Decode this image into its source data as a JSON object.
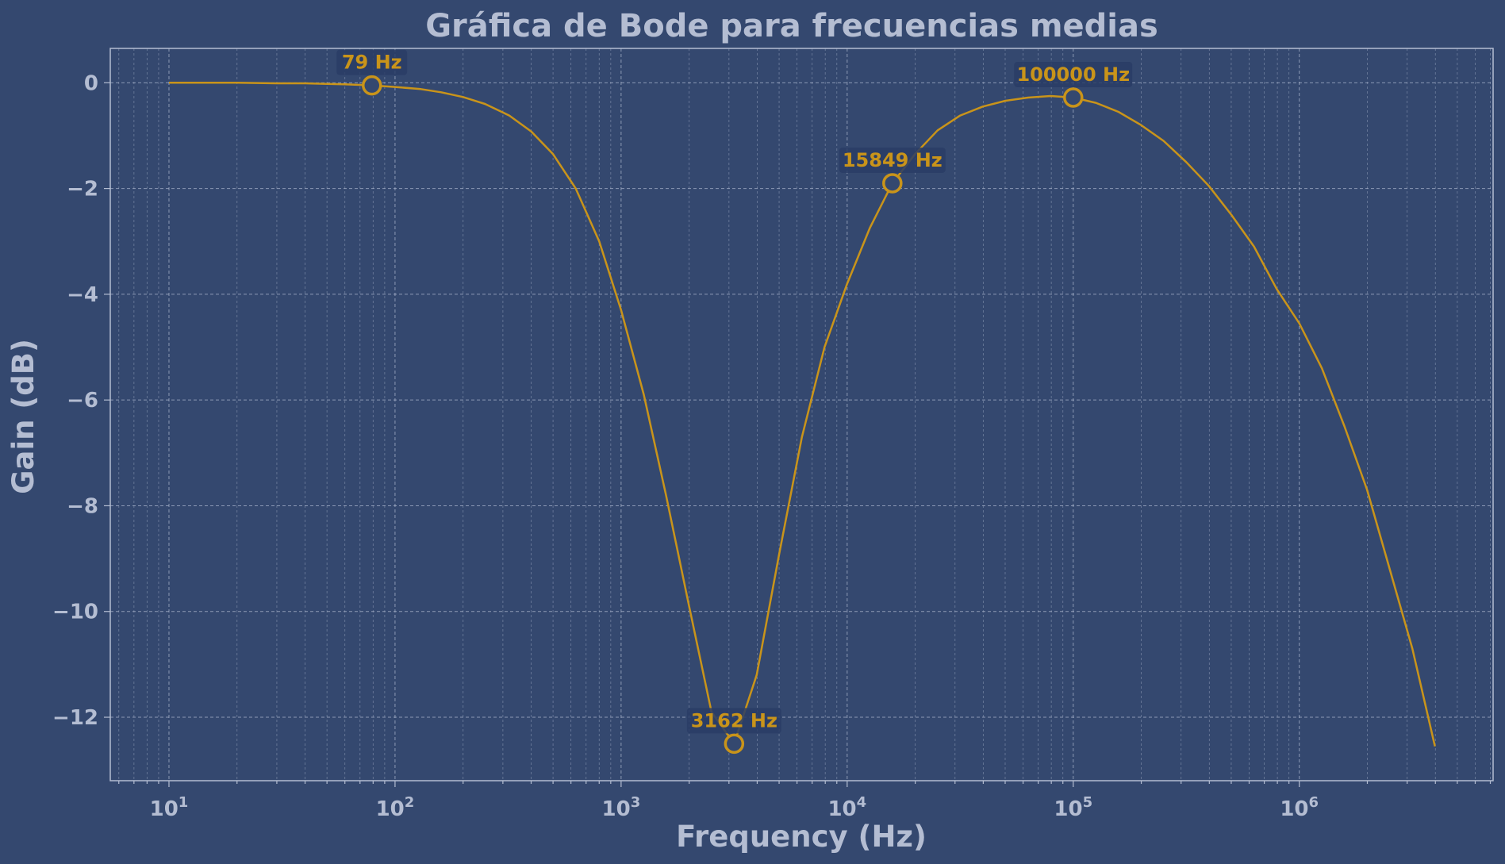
{
  "chart_data": {
    "type": "line",
    "title": "Gráfica de Bode para frecuencias medias",
    "xlabel": "Frequency (Hz)",
    "ylabel": "Gain (dB)",
    "x_scale": "log",
    "xlim": [
      5.5,
      7200000
    ],
    "ylim": [
      -13.2,
      0.65
    ],
    "grid": true,
    "x_ticks": [
      {
        "value": 10,
        "base": "10",
        "exp": "1"
      },
      {
        "value": 100,
        "base": "10",
        "exp": "2"
      },
      {
        "value": 1000,
        "base": "10",
        "exp": "3"
      },
      {
        "value": 10000,
        "base": "10",
        "exp": "4"
      },
      {
        "value": 100000,
        "base": "10",
        "exp": "5"
      },
      {
        "value": 1000000,
        "base": "10",
        "exp": "6"
      }
    ],
    "y_ticks": [
      {
        "value": 0,
        "label": "0"
      },
      {
        "value": -2,
        "label": "−2"
      },
      {
        "value": -4,
        "label": "−4"
      },
      {
        "value": -6,
        "label": "−6"
      },
      {
        "value": -8,
        "label": "−8"
      },
      {
        "value": -10,
        "label": "−10"
      },
      {
        "value": -12,
        "label": "−12"
      }
    ],
    "series": [
      {
        "color": "#c9941a",
        "x": [
          10,
          20,
          30,
          40,
          50,
          60,
          79,
          100,
          130,
          160,
          200,
          250,
          320,
          400,
          500,
          630,
          800,
          1000,
          1260,
          1580,
          2000,
          2510,
          3162,
          3980,
          5010,
          6310,
          7940,
          10000,
          12590,
          15849,
          19950,
          25120,
          31620,
          39810,
          50120,
          63100,
          79430,
          100000,
          125900,
          158500,
          199500,
          251200,
          316200,
          398100,
          501200,
          631000,
          794300,
          1000000,
          1259000,
          1585000,
          1995000,
          2512000,
          3162000,
          3981000
        ],
        "y": [
          0,
          0,
          -0.01,
          -0.01,
          -0.02,
          -0.03,
          -0.05,
          -0.08,
          -0.12,
          -0.18,
          -0.27,
          -0.4,
          -0.62,
          -0.92,
          -1.35,
          -2.0,
          -3.0,
          -4.3,
          -5.9,
          -7.8,
          -9.9,
          -11.9,
          -12.5,
          -11.2,
          -8.9,
          -6.7,
          -5.0,
          -3.8,
          -2.75,
          -1.9,
          -1.35,
          -0.9,
          -0.62,
          -0.45,
          -0.34,
          -0.28,
          -0.25,
          -0.28,
          -0.38,
          -0.55,
          -0.8,
          -1.1,
          -1.5,
          -1.95,
          -2.5,
          -3.1,
          -3.9,
          -4.55,
          -5.4,
          -6.5,
          -7.7,
          -9.2,
          -10.7,
          -12.55
        ]
      }
    ],
    "annotations": [
      {
        "x": 79,
        "y": -0.05,
        "label": "79 Hz",
        "position": "above"
      },
      {
        "x": 3162,
        "y": -12.5,
        "label": "3162 Hz",
        "position": "above"
      },
      {
        "x": 15849,
        "y": -1.9,
        "label": "15849 Hz",
        "position": "above"
      },
      {
        "x": 100000,
        "y": -0.28,
        "label": "100000 Hz",
        "position": "above"
      }
    ],
    "colors": {
      "background": "#34486f",
      "line": "#c9941a",
      "text": "#b4bdd2",
      "grid": "#a9b4cc",
      "label_box": "#2a3d66"
    }
  }
}
